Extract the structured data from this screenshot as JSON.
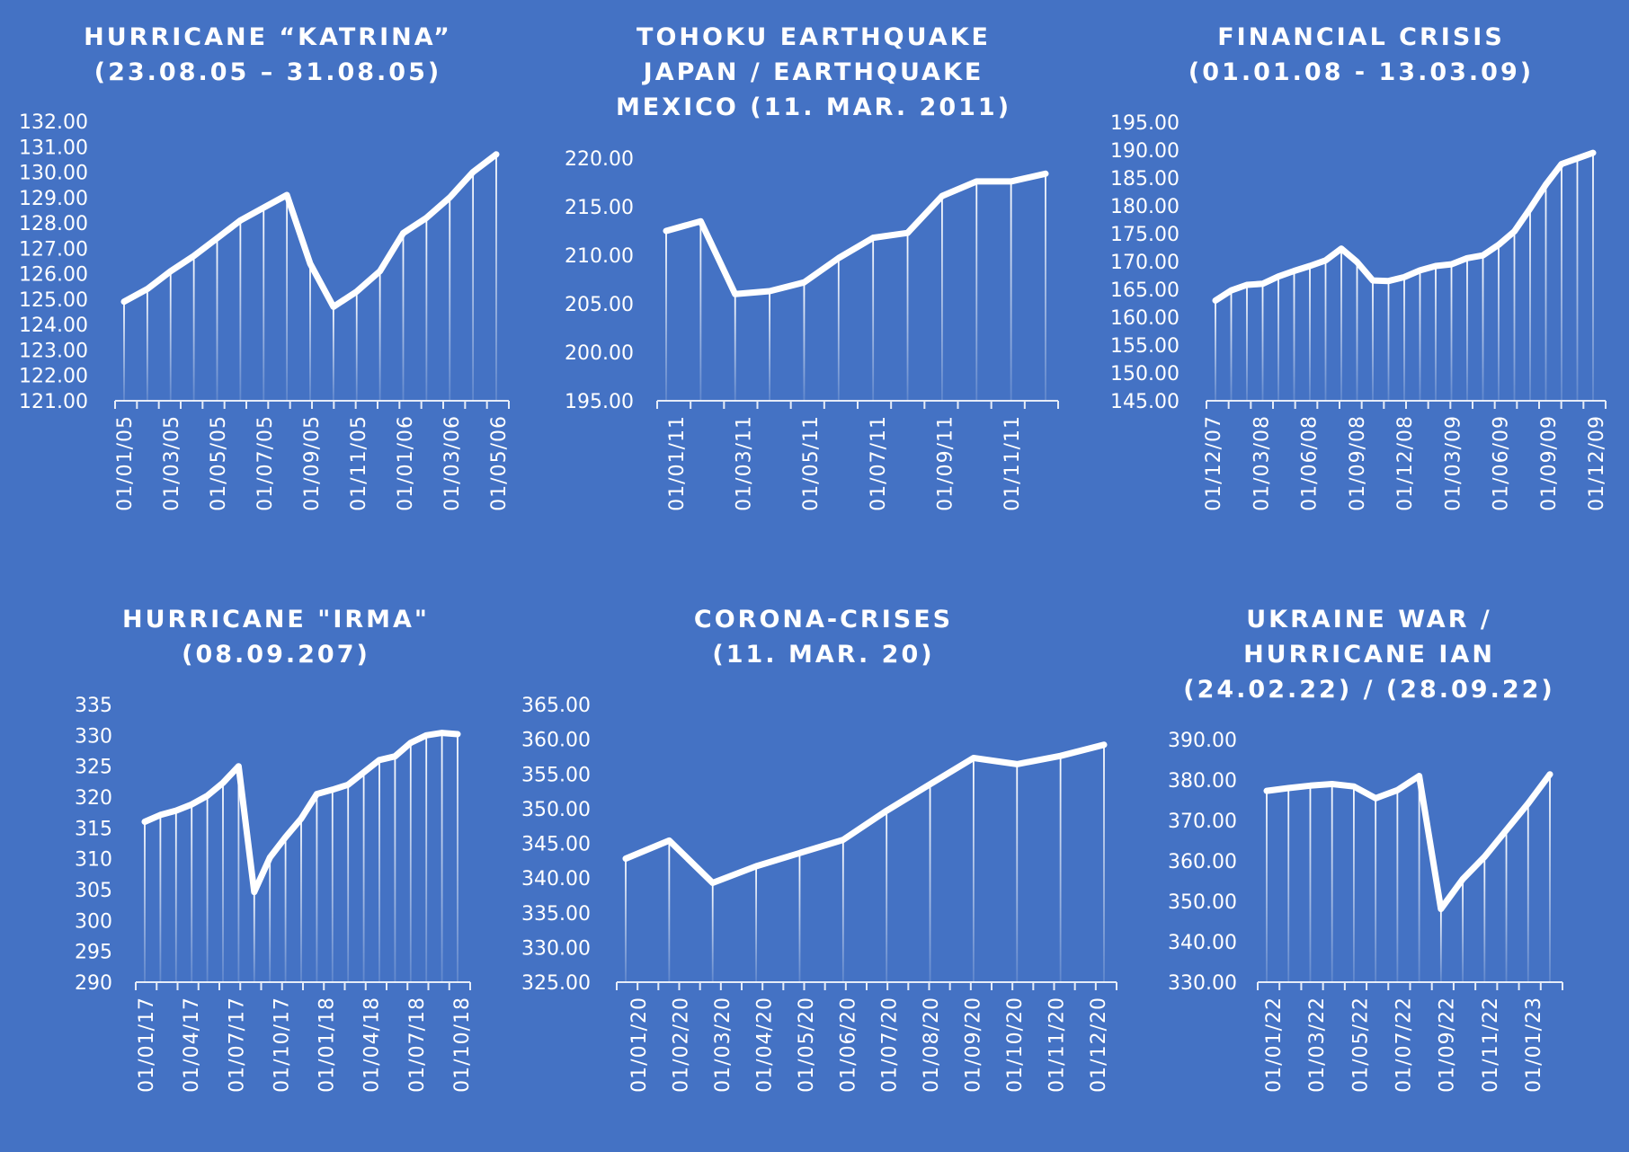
{
  "chart_data": [
    {
      "type": "line",
      "title": [
        "HURRICANE “KATRINA”",
        "(23.08.05 – 31.08.05)"
      ],
      "xlabel": "",
      "ylabel": "",
      "ylim": [
        121,
        132
      ],
      "y_ticks": [
        "132.00",
        "131.00",
        "130.00",
        "129.00",
        "128.00",
        "127.00",
        "126.00",
        "125.00",
        "124.00",
        "123.00",
        "122.00",
        "121.00"
      ],
      "x_ticks": [
        "01/01/05",
        "01/03/05",
        "01/05/05",
        "01/07/05",
        "01/09/05",
        "01/11/05",
        "01/01/06",
        "01/03/06",
        "01/05/06"
      ],
      "drop_lines": true,
      "grid": false,
      "series": [
        {
          "values": [
            124.9,
            125.4,
            126.1,
            126.7,
            127.4,
            128.1,
            128.6,
            129.1,
            126.4,
            124.7,
            125.3,
            126.1,
            127.6,
            128.2,
            129.0,
            130.0,
            130.7
          ]
        }
      ]
    },
    {
      "type": "line",
      "title": [
        "TOHOKU EARTHQUAKE",
        "JAPAN / EARTHQUAKE",
        "MEXICO (11. MAR. 2011)"
      ],
      "xlabel": "",
      "ylabel": "",
      "ylim": [
        195,
        220
      ],
      "y_ticks": [
        "220.00",
        "215.00",
        "210.00",
        "205.00",
        "200.00",
        "195.00"
      ],
      "x_ticks": [
        "01/01/11",
        "01/03/11",
        "01/05/11",
        "01/07/11",
        "01/09/11",
        "01/11/11"
      ],
      "drop_lines": true,
      "grid": false,
      "series": [
        {
          "values": [
            212.5,
            213.5,
            206.0,
            206.3,
            207.2,
            209.7,
            211.8,
            212.3,
            216.1,
            217.6,
            217.6,
            218.4
          ]
        }
      ]
    },
    {
      "type": "line",
      "title": [
        "FINANCIAL CRISIS",
        "(01.01.08 - 13.03.09)"
      ],
      "xlabel": "",
      "ylabel": "",
      "ylim": [
        145,
        195
      ],
      "y_ticks": [
        "195.00",
        "190.00",
        "185.00",
        "180.00",
        "175.00",
        "170.00",
        "165.00",
        "160.00",
        "155.00",
        "150.00",
        "145.00"
      ],
      "x_ticks": [
        "01/12/07",
        "01/03/08",
        "01/06/08",
        "01/09/08",
        "01/12/08",
        "01/03/09",
        "01/06/09",
        "01/09/09",
        "01/12/09"
      ],
      "drop_lines": true,
      "grid": false,
      "series": [
        {
          "values": [
            163.0,
            164.8,
            165.8,
            166.0,
            167.3,
            168.3,
            169.2,
            170.2,
            172.3,
            169.9,
            166.6,
            166.5,
            167.2,
            168.4,
            169.2,
            169.5,
            170.6,
            171.1,
            173.0,
            175.4,
            179.5,
            183.8,
            187.5,
            188.5,
            189.5
          ]
        }
      ]
    },
    {
      "type": "line",
      "title": [
        "HURRICANE \"IRMA\"",
        "(08.09.207)"
      ],
      "xlabel": "",
      "ylabel": "",
      "ylim": [
        290,
        335
      ],
      "y_ticks": [
        "335",
        "330",
        "325",
        "320",
        "315",
        "310",
        "305",
        "300",
        "295",
        "290"
      ],
      "x_ticks": [
        "01/01/17",
        "01/04/17",
        "01/07/17",
        "01/10/17",
        "01/01/18",
        "01/04/18",
        "01/07/18",
        "01/10/18"
      ],
      "drop_lines": true,
      "grid": false,
      "series": [
        {
          "values": [
            316.0,
            317.1,
            317.8,
            318.8,
            320.2,
            322.3,
            325.0,
            304.6,
            310.2,
            313.5,
            316.5,
            320.5,
            321.2,
            322.0,
            324.0,
            326.0,
            326.6,
            328.8,
            330.0,
            330.4,
            330.2
          ]
        }
      ]
    },
    {
      "type": "line",
      "title": [
        "CORONA-CRISES",
        "(11. MAR. 20)"
      ],
      "xlabel": "",
      "ylabel": "",
      "ylim": [
        325,
        365
      ],
      "y_ticks": [
        "365.00",
        "360.00",
        "355.00",
        "350.00",
        "345.00",
        "340.00",
        "335.00",
        "330.00",
        "325.00"
      ],
      "x_ticks": [
        "01/01/20",
        "01/02/20",
        "01/03/20",
        "01/04/20",
        "01/05/20",
        "01/06/20",
        "01/07/20",
        "01/08/20",
        "01/09/20",
        "01/10/20",
        "01/11/20",
        "01/12/20"
      ],
      "drop_lines": true,
      "grid": false,
      "series": [
        {
          "values": [
            342.8,
            345.4,
            339.3,
            341.7,
            343.6,
            345.5,
            349.7,
            353.5,
            357.3,
            356.4,
            357.6,
            359.2
          ]
        }
      ]
    },
    {
      "type": "line",
      "title": [
        "UKRAINE WAR /",
        "HURRICANE IAN",
        "(24.02.22) / (28.09.22)"
      ],
      "xlabel": "",
      "ylabel": "",
      "ylim": [
        330,
        390
      ],
      "y_ticks": [
        "390.00",
        "380.00",
        "370.00",
        "360.00",
        "350.00",
        "340.00",
        "330.00"
      ],
      "x_ticks": [
        "01/01/22",
        "01/03/22",
        "01/05/22",
        "01/07/22",
        "01/09/22",
        "01/11/22",
        "01/01/23"
      ],
      "drop_lines": true,
      "grid": false,
      "series": [
        {
          "values": [
            377.3,
            378.0,
            378.6,
            379.0,
            378.4,
            375.5,
            377.5,
            381.0,
            348.1,
            355.5,
            361.0,
            367.6,
            374.2,
            381.4
          ]
        }
      ]
    }
  ]
}
